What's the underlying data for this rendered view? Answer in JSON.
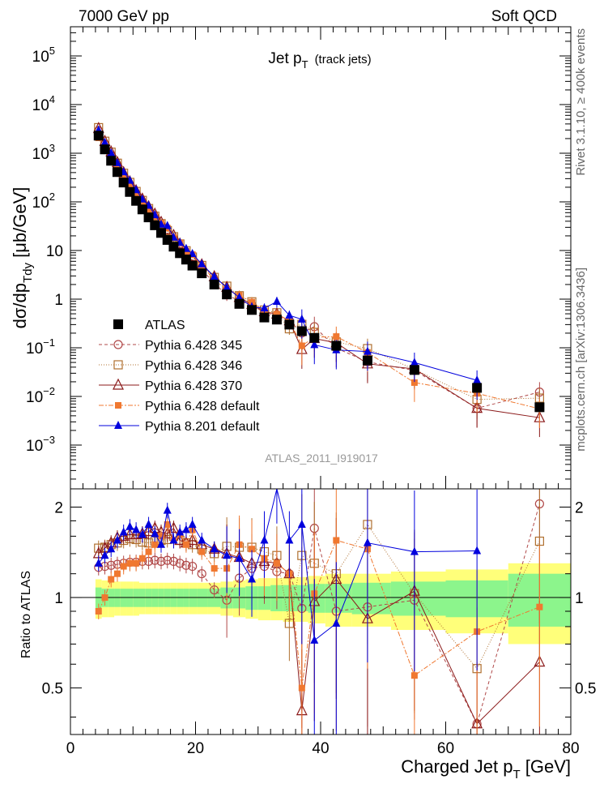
{
  "header": {
    "energy": "7000 GeV pp",
    "process": "Soft QCD"
  },
  "title": {
    "main": "Jet p",
    "sub": "T",
    "suffix": "(track jets)"
  },
  "side_labels": {
    "rivet": "Rivet 3.1.10, ≥ 400k events",
    "mcplots": "mcplots.cern.ch [arXiv:1306.3436]"
  },
  "watermark": "ATLAS_2011_I919017",
  "chart_data": {
    "type": "scatter",
    "xlabel": "Charged Jet p_T [GeV]",
    "xlabel_parts": {
      "main": "Charged Jet p",
      "sub": "T",
      "unit": " [GeV]"
    },
    "ylabel": "dσ/dp_Tdy [μb/GeV]",
    "ylabel_parts": {
      "main": "dσ/dp",
      "sub": "Tdy",
      "unit": " [μb/GeV]"
    },
    "ratio_ylabel": "Ratio to ATLAS",
    "xlim": [
      0,
      80
    ],
    "ylim_log10": [
      -3.9,
      5.6
    ],
    "ratio_ylim": [
      0.35,
      2.3
    ],
    "x_ticks": [
      0,
      20,
      40,
      60,
      80
    ],
    "y_ticks": [
      {
        "v": 5,
        "label": "10",
        "exp": "5"
      },
      {
        "v": 4,
        "label": "10",
        "exp": "4"
      },
      {
        "v": 3,
        "label": "10",
        "exp": "3"
      },
      {
        "v": 2,
        "label": "10",
        "exp": "2"
      },
      {
        "v": 1,
        "label": "10",
        "exp": ""
      },
      {
        "v": 0,
        "label": "1",
        "exp": ""
      },
      {
        "v": -1,
        "label": "10",
        "exp": "−1"
      },
      {
        "v": -2,
        "label": "10",
        "exp": "−2"
      },
      {
        "v": -3,
        "label": "10",
        "exp": "−3"
      }
    ],
    "ratio_ticks": [
      {
        "v": 0.5,
        "label": "0.5"
      },
      {
        "v": 1,
        "label": "1"
      },
      {
        "v": 2,
        "label": "2"
      }
    ],
    "x": [
      4.5,
      5.5,
      6.5,
      7.5,
      8.5,
      9.5,
      10.5,
      11.5,
      12.5,
      13.5,
      14.5,
      15.5,
      16.5,
      17.5,
      18.5,
      19.5,
      21,
      23,
      25,
      27,
      29,
      31,
      33,
      35,
      37,
      39,
      42.5,
      47.5,
      55,
      65,
      75
    ],
    "atlas": {
      "name": "ATLAS",
      "color": "#000000",
      "values": [
        2300,
        1200,
        700,
        410,
        250,
        160,
        105,
        70,
        48,
        33,
        23,
        16.5,
        12,
        8.8,
        6.5,
        4.9,
        3.4,
        2.0,
        1.25,
        0.8,
        0.6,
        0.42,
        0.38,
        0.3,
        0.22,
        0.16,
        0.11,
        0.055,
        0.035,
        0.015,
        0.006
      ],
      "band_outer": [
        0.15,
        0.14,
        0.14,
        0.13,
        0.13,
        0.13,
        0.13,
        0.12,
        0.12,
        0.12,
        0.12,
        0.12,
        0.12,
        0.12,
        0.12,
        0.12,
        0.12,
        0.12,
        0.13,
        0.14,
        0.15,
        0.16,
        0.16,
        0.17,
        0.17,
        0.18,
        0.2,
        0.2,
        0.22,
        0.24,
        0.3
      ],
      "band_inner": [
        0.08,
        0.07,
        0.07,
        0.07,
        0.07,
        0.07,
        0.07,
        0.07,
        0.07,
        0.07,
        0.07,
        0.07,
        0.07,
        0.07,
        0.07,
        0.07,
        0.07,
        0.07,
        0.08,
        0.08,
        0.09,
        0.09,
        0.1,
        0.1,
        0.1,
        0.11,
        0.11,
        0.12,
        0.13,
        0.14,
        0.2
      ]
    },
    "series": [
      {
        "name": "Pythia 6.428 345",
        "color": "#b04848",
        "marker": "circle-open",
        "dash": "4,3",
        "ratios": [
          1.26,
          1.27,
          1.28,
          1.29,
          1.3,
          1.31,
          1.31,
          1.32,
          1.32,
          1.33,
          1.32,
          1.33,
          1.32,
          1.3,
          1.28,
          1.27,
          1.2,
          1.06,
          0.98,
          1.16,
          1.25,
          1.27,
          1.22,
          1.2,
          0.92,
          1.7,
          0.9,
          0.93,
          0.98,
          0.38,
          2.05
        ]
      },
      {
        "name": "Pythia 6.428 346",
        "color": "#b07030",
        "marker": "square-open",
        "dash": "1,2",
        "ratios": [
          1.46,
          1.47,
          1.5,
          1.52,
          1.55,
          1.57,
          1.56,
          1.53,
          1.52,
          1.54,
          1.55,
          1.56,
          1.6,
          1.55,
          1.52,
          1.5,
          1.45,
          1.4,
          1.48,
          1.47,
          1.47,
          1.42,
          1.38,
          0.82,
          1.38,
          1.3,
          1.2,
          1.75,
          1.03,
          0.58,
          1.54
        ]
      },
      {
        "name": "Pythia 6.428 370",
        "color": "#8b1a1a",
        "marker": "triangle-open",
        "dash": "",
        "ratios": [
          1.4,
          1.46,
          1.52,
          1.58,
          1.6,
          1.62,
          1.62,
          1.63,
          1.66,
          1.7,
          1.65,
          1.63,
          1.7,
          1.55,
          1.52,
          1.55,
          1.5,
          1.45,
          1.4,
          1.36,
          1.3,
          1.32,
          1.3,
          1.2,
          0.42,
          0.97,
          1.15,
          0.85,
          1.05,
          0.38,
          0.61
        ]
      },
      {
        "name": "Pythia 6.428 default",
        "color": "#f07830",
        "marker": "square-filled",
        "dash": "6,2,2,2",
        "ratios": [
          0.9,
          1.0,
          1.15,
          1.2,
          1.27,
          1.3,
          1.3,
          1.35,
          1.42,
          1.5,
          1.6,
          1.75,
          1.55,
          1.62,
          1.5,
          1.68,
          1.42,
          1.25,
          1.25,
          1.5,
          1.45,
          1.35,
          1.3,
          1.2,
          0.5,
          1.03,
          1.55,
          1.45,
          0.55,
          0.77,
          0.93
        ]
      },
      {
        "name": "Pythia 8.201 default",
        "color": "#0000dd",
        "marker": "triangle-filled",
        "dash": "",
        "ratios": [
          1.3,
          1.38,
          1.45,
          1.55,
          1.65,
          1.72,
          1.68,
          1.62,
          1.75,
          1.63,
          1.5,
          1.95,
          1.55,
          1.65,
          1.68,
          1.75,
          1.55,
          1.45,
          1.38,
          1.35,
          1.15,
          1.55,
          2.35,
          1.55,
          1.75,
          0.72,
          0.82,
          1.52,
          1.42,
          1.43,
          null
        ]
      }
    ]
  }
}
